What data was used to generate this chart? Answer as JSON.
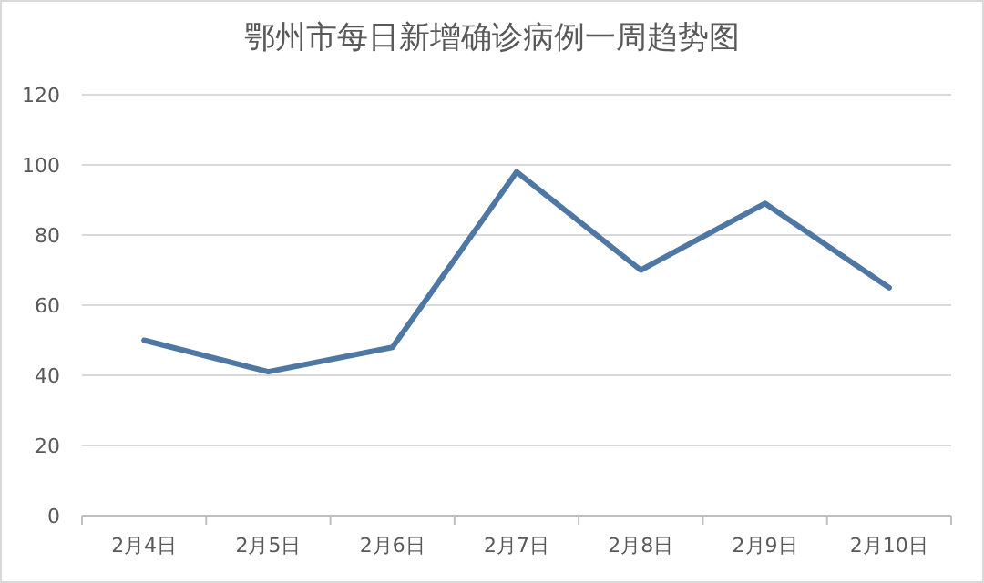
{
  "chart_data": {
    "type": "line",
    "title": "鄂州市每日新增确诊病例一周趋势图",
    "categories": [
      "2月4日",
      "2月5日",
      "2月6日",
      "2月7日",
      "2月8日",
      "2月9日",
      "2月10日"
    ],
    "series": [
      {
        "color": "#4e77a4",
        "values": [
          50,
          41,
          48,
          98,
          70,
          89,
          65
        ]
      }
    ],
    "ylim": [
      0,
      120
    ],
    "yticks": [
      0,
      20,
      40,
      60,
      80,
      100,
      120
    ],
    "grid": "y",
    "marker": "none",
    "line_style": "solid"
  }
}
